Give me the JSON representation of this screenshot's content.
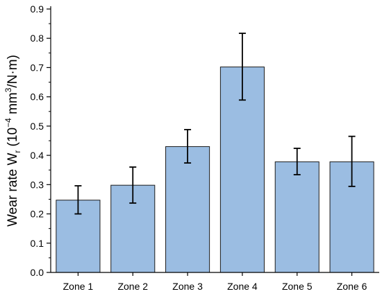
{
  "chart_data": {
    "type": "bar",
    "title": "",
    "xlabel": "",
    "ylabel": {
      "parts": [
        {
          "text": "Wear rate W",
          "style": "normal"
        },
        {
          "text": "r",
          "style": "sub"
        },
        {
          "text": " (10",
          "style": "normal"
        },
        {
          "text": "−4",
          "style": "sup"
        },
        {
          "text": " mm",
          "style": "normal"
        },
        {
          "text": "3",
          "style": "sup"
        },
        {
          "text": "/N·m)",
          "style": "normal"
        }
      ]
    },
    "categories": [
      "Zone 1",
      "Zone 2",
      "Zone 3",
      "Zone 4",
      "Zone 5",
      "Zone 6"
    ],
    "values": [
      0.247,
      0.298,
      0.43,
      0.702,
      0.378,
      0.378
    ],
    "error_upper": [
      0.296,
      0.36,
      0.488,
      0.817,
      0.424,
      0.465
    ],
    "error_lower": [
      0.2,
      0.237,
      0.374,
      0.589,
      0.334,
      0.294
    ],
    "ylim": [
      0,
      0.9
    ],
    "yticks": [
      "0.0",
      "0.1",
      "0.2",
      "0.3",
      "0.4",
      "0.5",
      "0.6",
      "0.7",
      "0.8",
      "0.9"
    ],
    "ytick_values": [
      0,
      0.1,
      0.2,
      0.3,
      0.4,
      0.5,
      0.6,
      0.7,
      0.8,
      0.9
    ],
    "grid": false,
    "legend": "none",
    "colors": {
      "bar_fill": "#9bbde2",
      "bar_stroke": "#1a1a1a",
      "error_bar": "#000000",
      "axis": "#000000"
    }
  }
}
